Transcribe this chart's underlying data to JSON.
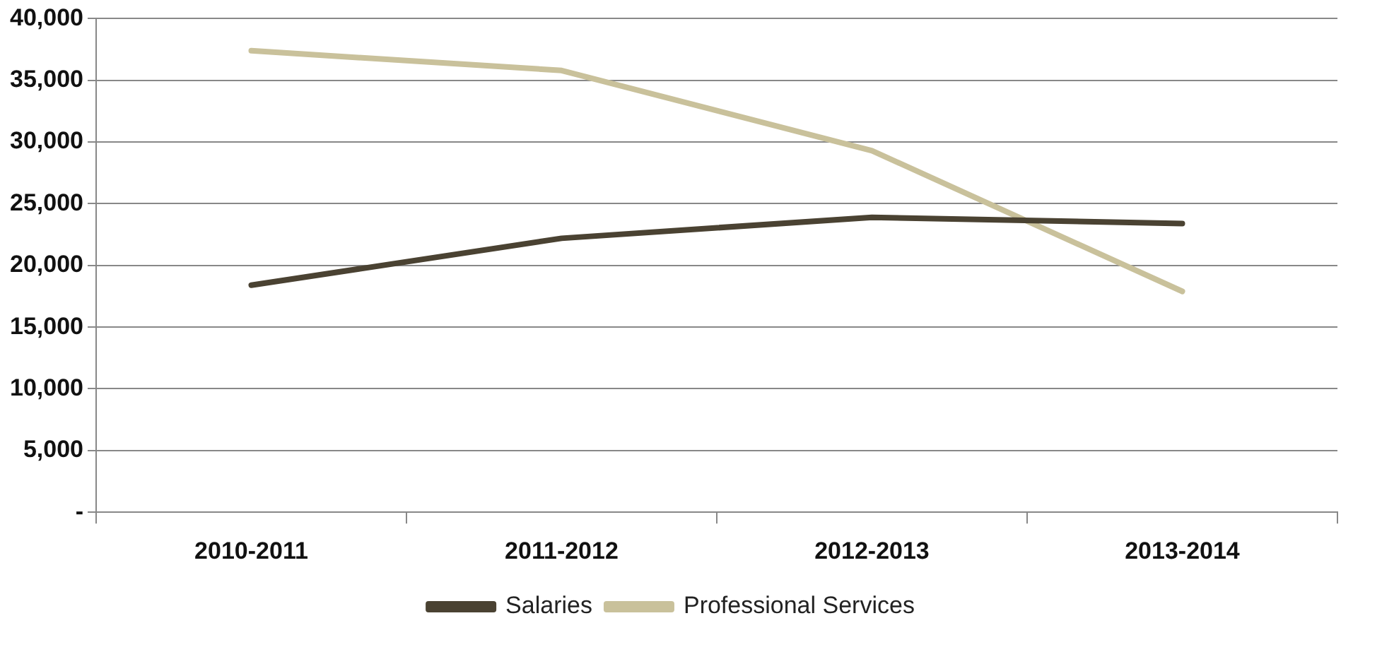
{
  "chart_data": {
    "type": "line",
    "categories": [
      "2010-2011",
      "2011-2012",
      "2012-2013",
      "2013-2014"
    ],
    "series": [
      {
        "name": "Salaries",
        "color": "#4a4232",
        "values": [
          18400,
          22200,
          23900,
          23400
        ]
      },
      {
        "name": "Professional Services",
        "color": "#c9c19b",
        "values": [
          37400,
          35800,
          29300,
          17900
        ]
      }
    ],
    "ylim": [
      0,
      40000
    ],
    "yticks": [
      {
        "value": 0,
        "label": "-"
      },
      {
        "value": 5000,
        "label": "5,000"
      },
      {
        "value": 10000,
        "label": "10,000"
      },
      {
        "value": 15000,
        "label": "15,000"
      },
      {
        "value": 20000,
        "label": "20,000"
      },
      {
        "value": 25000,
        "label": "25,000"
      },
      {
        "value": 30000,
        "label": "30,000"
      },
      {
        "value": 35000,
        "label": "35,000"
      },
      {
        "value": 40000,
        "label": "40,000"
      }
    ],
    "grid": "y",
    "legend": "bottom",
    "marker": "none",
    "line_style": "solid"
  }
}
